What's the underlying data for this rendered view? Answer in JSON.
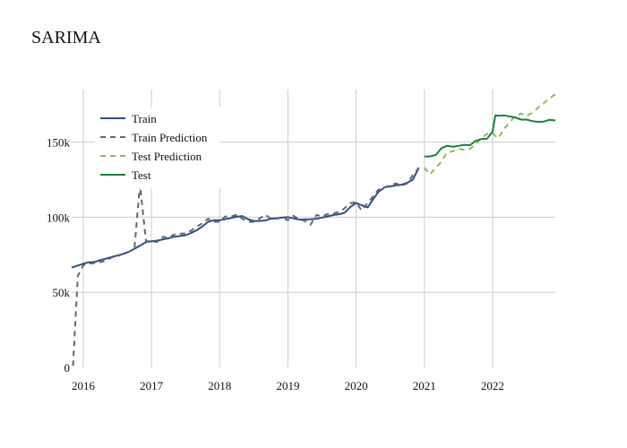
{
  "chart_data": {
    "type": "line",
    "title": "SARIMA",
    "xlabel": "",
    "ylabel": "",
    "xlim": [
      2015.83,
      2022.92
    ],
    "ylim": [
      0,
      185000
    ],
    "x_ticks": [
      {
        "value": 2016,
        "label": "2016"
      },
      {
        "value": 2017,
        "label": "2017"
      },
      {
        "value": 2018,
        "label": "2018"
      },
      {
        "value": 2019,
        "label": "2019"
      },
      {
        "value": 2020,
        "label": "2020"
      },
      {
        "value": 2021,
        "label": "2021"
      },
      {
        "value": 2022,
        "label": "2022"
      }
    ],
    "y_ticks": [
      {
        "value": 0,
        "label": "0"
      },
      {
        "value": 50000,
        "label": "50k"
      },
      {
        "value": 100000,
        "label": "100k"
      },
      {
        "value": 150000,
        "label": "150k"
      }
    ],
    "grid": true,
    "legend_position": "top-left",
    "series": [
      {
        "name": "Train",
        "color": "#2b5088",
        "dash": "solid",
        "points": [
          [
            2015.83,
            66500
          ],
          [
            2016.0,
            69000
          ],
          [
            2016.08,
            70000
          ],
          [
            2016.17,
            70200
          ],
          [
            2016.25,
            71500
          ],
          [
            2016.33,
            72300
          ],
          [
            2016.42,
            73600
          ],
          [
            2016.5,
            74500
          ],
          [
            2016.58,
            75500
          ],
          [
            2016.67,
            77000
          ],
          [
            2016.75,
            79000
          ],
          [
            2016.83,
            81000
          ],
          [
            2016.92,
            83500
          ],
          [
            2017.0,
            84000
          ],
          [
            2017.08,
            84400
          ],
          [
            2017.17,
            85300
          ],
          [
            2017.25,
            86000
          ],
          [
            2017.33,
            87000
          ],
          [
            2017.42,
            87500
          ],
          [
            2017.5,
            88000
          ],
          [
            2017.58,
            89500
          ],
          [
            2017.67,
            91500
          ],
          [
            2017.75,
            94000
          ],
          [
            2017.83,
            97000
          ],
          [
            2017.92,
            98000
          ],
          [
            2018.0,
            98000
          ],
          [
            2018.08,
            98700
          ],
          [
            2018.17,
            99500
          ],
          [
            2018.25,
            100300
          ],
          [
            2018.33,
            100800
          ],
          [
            2018.42,
            98500
          ],
          [
            2018.5,
            97500
          ],
          [
            2018.58,
            97500
          ],
          [
            2018.67,
            97800
          ],
          [
            2018.75,
            99000
          ],
          [
            2018.83,
            99300
          ],
          [
            2018.92,
            99800
          ],
          [
            2019.0,
            100000
          ],
          [
            2019.08,
            99300
          ],
          [
            2019.17,
            98400
          ],
          [
            2019.25,
            98500
          ],
          [
            2019.33,
            98600
          ],
          [
            2019.42,
            99000
          ],
          [
            2019.5,
            99800
          ],
          [
            2019.58,
            100500
          ],
          [
            2019.67,
            101500
          ],
          [
            2019.75,
            102000
          ],
          [
            2019.83,
            103000
          ],
          [
            2019.92,
            107000
          ],
          [
            2020.0,
            109500
          ],
          [
            2020.08,
            108000
          ],
          [
            2020.17,
            106500
          ],
          [
            2020.25,
            112000
          ],
          [
            2020.33,
            117000
          ],
          [
            2020.42,
            120000
          ],
          [
            2020.5,
            120500
          ],
          [
            2020.58,
            121200
          ],
          [
            2020.67,
            121700
          ],
          [
            2020.75,
            123000
          ],
          [
            2020.83,
            125000
          ],
          [
            2020.92,
            133000
          ]
        ]
      },
      {
        "name": "Train Prediction",
        "color": "#666666",
        "dash": "dash",
        "points": [
          [
            2015.85,
            1000
          ],
          [
            2015.92,
            61000
          ],
          [
            2016.0,
            68000
          ],
          [
            2016.08,
            69000
          ],
          [
            2016.17,
            69500
          ],
          [
            2016.25,
            70200
          ],
          [
            2016.33,
            71000
          ],
          [
            2016.42,
            73200
          ],
          [
            2016.5,
            74000
          ],
          [
            2016.58,
            75500
          ],
          [
            2016.67,
            77000
          ],
          [
            2016.75,
            79000
          ],
          [
            2016.83,
            122000
          ],
          [
            2016.92,
            84000
          ],
          [
            2017.0,
            84000
          ],
          [
            2017.08,
            83500
          ],
          [
            2017.17,
            87000
          ],
          [
            2017.25,
            86200
          ],
          [
            2017.33,
            88500
          ],
          [
            2017.42,
            89000
          ],
          [
            2017.5,
            89200
          ],
          [
            2017.58,
            91000
          ],
          [
            2017.67,
            94000
          ],
          [
            2017.75,
            96000
          ],
          [
            2017.83,
            99000
          ],
          [
            2017.92,
            97000
          ],
          [
            2018.0,
            97000
          ],
          [
            2018.08,
            100500
          ],
          [
            2018.17,
            100500
          ],
          [
            2018.25,
            101700
          ],
          [
            2018.33,
            99000
          ],
          [
            2018.42,
            97000
          ],
          [
            2018.5,
            97000
          ],
          [
            2018.58,
            99000
          ],
          [
            2018.67,
            101700
          ],
          [
            2018.75,
            99000
          ],
          [
            2018.83,
            99000
          ],
          [
            2018.92,
            99800
          ],
          [
            2019.0,
            98000
          ],
          [
            2019.08,
            101000
          ],
          [
            2019.17,
            98500
          ],
          [
            2019.25,
            97500
          ],
          [
            2019.33,
            95000
          ],
          [
            2019.42,
            101500
          ],
          [
            2019.5,
            100500
          ],
          [
            2019.58,
            102000
          ],
          [
            2019.67,
            102500
          ],
          [
            2019.75,
            103500
          ],
          [
            2019.83,
            106000
          ],
          [
            2019.92,
            109500
          ],
          [
            2020.0,
            110000
          ],
          [
            2020.08,
            104500
          ],
          [
            2020.17,
            109500
          ],
          [
            2020.25,
            114000
          ],
          [
            2020.33,
            118500
          ],
          [
            2020.42,
            120000
          ],
          [
            2020.5,
            121000
          ],
          [
            2020.58,
            122500
          ],
          [
            2020.67,
            121000
          ],
          [
            2020.75,
            122500
          ],
          [
            2020.83,
            128000
          ],
          [
            2020.92,
            133000
          ]
        ]
      },
      {
        "name": "Test Prediction",
        "color": "#8fb85c",
        "dash": "dash",
        "points": [
          [
            2021.0,
            133000
          ],
          [
            2021.08,
            128500
          ],
          [
            2021.17,
            133000
          ],
          [
            2021.25,
            137000
          ],
          [
            2021.33,
            143000
          ],
          [
            2021.42,
            144000
          ],
          [
            2021.5,
            145500
          ],
          [
            2021.58,
            145000
          ],
          [
            2021.67,
            145500
          ],
          [
            2021.75,
            148500
          ],
          [
            2021.83,
            152500
          ],
          [
            2021.92,
            155500
          ],
          [
            2022.0,
            156000
          ],
          [
            2022.08,
            152500
          ],
          [
            2022.17,
            159000
          ],
          [
            2022.25,
            163000
          ],
          [
            2022.33,
            167500
          ],
          [
            2022.42,
            169000
          ],
          [
            2022.5,
            167500
          ],
          [
            2022.58,
            169500
          ],
          [
            2022.67,
            173000
          ],
          [
            2022.75,
            176000
          ],
          [
            2022.83,
            179000
          ],
          [
            2022.92,
            182000
          ]
        ]
      },
      {
        "name": "Test",
        "color": "#1a8040",
        "dash": "solid",
        "points": [
          [
            2021.0,
            140500
          ],
          [
            2021.08,
            140500
          ],
          [
            2021.17,
            141500
          ],
          [
            2021.25,
            146000
          ],
          [
            2021.33,
            147500
          ],
          [
            2021.42,
            147000
          ],
          [
            2021.5,
            147500
          ],
          [
            2021.58,
            148200
          ],
          [
            2021.67,
            148000
          ],
          [
            2021.75,
            150800
          ],
          [
            2021.83,
            152000
          ],
          [
            2021.92,
            152300
          ],
          [
            2022.0,
            157000
          ],
          [
            2022.04,
            167800
          ],
          [
            2022.08,
            167600
          ],
          [
            2022.17,
            167800
          ],
          [
            2022.25,
            167100
          ],
          [
            2022.33,
            166500
          ],
          [
            2022.42,
            165000
          ],
          [
            2022.5,
            165000
          ],
          [
            2022.58,
            164000
          ],
          [
            2022.67,
            163500
          ],
          [
            2022.75,
            163700
          ],
          [
            2022.83,
            164800
          ],
          [
            2022.92,
            164500
          ]
        ]
      }
    ]
  }
}
